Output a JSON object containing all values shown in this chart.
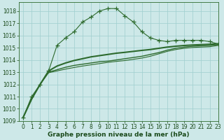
{
  "xlabel": "Graphe pression niveau de la mer (hPa)",
  "background_color": "#cde8e8",
  "grid_color": "#9ecece",
  "line_color": "#2d6a2d",
  "xlim": [
    -0.5,
    23
  ],
  "ylim": [
    1009,
    1018.7
  ],
  "yticks": [
    1009,
    1010,
    1011,
    1012,
    1013,
    1014,
    1015,
    1016,
    1017,
    1018
  ],
  "xticks": [
    0,
    1,
    2,
    3,
    4,
    5,
    6,
    7,
    8,
    9,
    10,
    11,
    12,
    13,
    14,
    15,
    16,
    17,
    18,
    19,
    20,
    21,
    22,
    23
  ],
  "series": [
    {
      "x": [
        0,
        1,
        2,
        3,
        4,
        5,
        6,
        7,
        8,
        9,
        10,
        11,
        12,
        13,
        14,
        15,
        16,
        17,
        18,
        19,
        20,
        21,
        22,
        23
      ],
      "y": [
        1009.3,
        1011.0,
        1012.0,
        1013.1,
        1015.2,
        1015.8,
        1016.3,
        1017.1,
        1017.5,
        1018.0,
        1018.2,
        1018.2,
        1017.6,
        1017.1,
        1016.3,
        1015.8,
        1015.6,
        1015.5,
        1015.6,
        1015.6,
        1015.6,
        1015.6,
        1015.5,
        1015.3
      ],
      "marker": "+",
      "linewidth": 0.8,
      "markersize": 4,
      "linestyle": "-"
    },
    {
      "x": [
        0,
        1,
        2,
        3,
        4,
        5,
        6,
        7,
        8,
        9,
        10,
        11,
        12,
        13,
        14,
        15,
        16,
        17,
        18,
        19,
        20,
        21,
        22,
        23
      ],
      "y": [
        1009.3,
        1010.8,
        1012.0,
        1013.1,
        1013.5,
        1013.75,
        1013.95,
        1014.1,
        1014.25,
        1014.35,
        1014.45,
        1014.55,
        1014.62,
        1014.7,
        1014.78,
        1014.85,
        1014.95,
        1015.05,
        1015.12,
        1015.18,
        1015.22,
        1015.25,
        1015.28,
        1015.32
      ],
      "marker": null,
      "linewidth": 1.5,
      "linestyle": "-"
    },
    {
      "x": [
        0,
        1,
        2,
        3,
        4,
        5,
        6,
        7,
        8,
        9,
        10,
        11,
        12,
        13,
        14,
        15,
        16,
        17,
        18,
        19,
        20,
        21,
        22,
        23
      ],
      "y": [
        1009.3,
        1010.8,
        1012.0,
        1013.0,
        1013.2,
        1013.4,
        1013.55,
        1013.65,
        1013.75,
        1013.85,
        1013.9,
        1014.0,
        1014.1,
        1014.2,
        1014.3,
        1014.45,
        1014.6,
        1014.8,
        1014.95,
        1015.05,
        1015.12,
        1015.15,
        1015.18,
        1015.25
      ],
      "marker": null,
      "linewidth": 1.0,
      "linestyle": "-"
    },
    {
      "x": [
        0,
        1,
        2,
        3,
        4,
        5,
        6,
        7,
        8,
        9,
        10,
        11,
        12,
        13,
        14,
        15,
        16,
        17,
        18,
        19,
        20,
        21,
        22,
        23
      ],
      "y": [
        1009.3,
        1010.8,
        1012.0,
        1012.95,
        1013.1,
        1013.25,
        1013.38,
        1013.5,
        1013.6,
        1013.7,
        1013.8,
        1013.88,
        1013.95,
        1014.05,
        1014.15,
        1014.3,
        1014.5,
        1014.7,
        1014.85,
        1014.95,
        1015.02,
        1015.05,
        1015.08,
        1015.18
      ],
      "marker": null,
      "linewidth": 0.8,
      "linestyle": "-"
    }
  ],
  "text_color": "#1a4a1a",
  "xlabel_fontsize": 6.5,
  "tick_fontsize": 5.5
}
